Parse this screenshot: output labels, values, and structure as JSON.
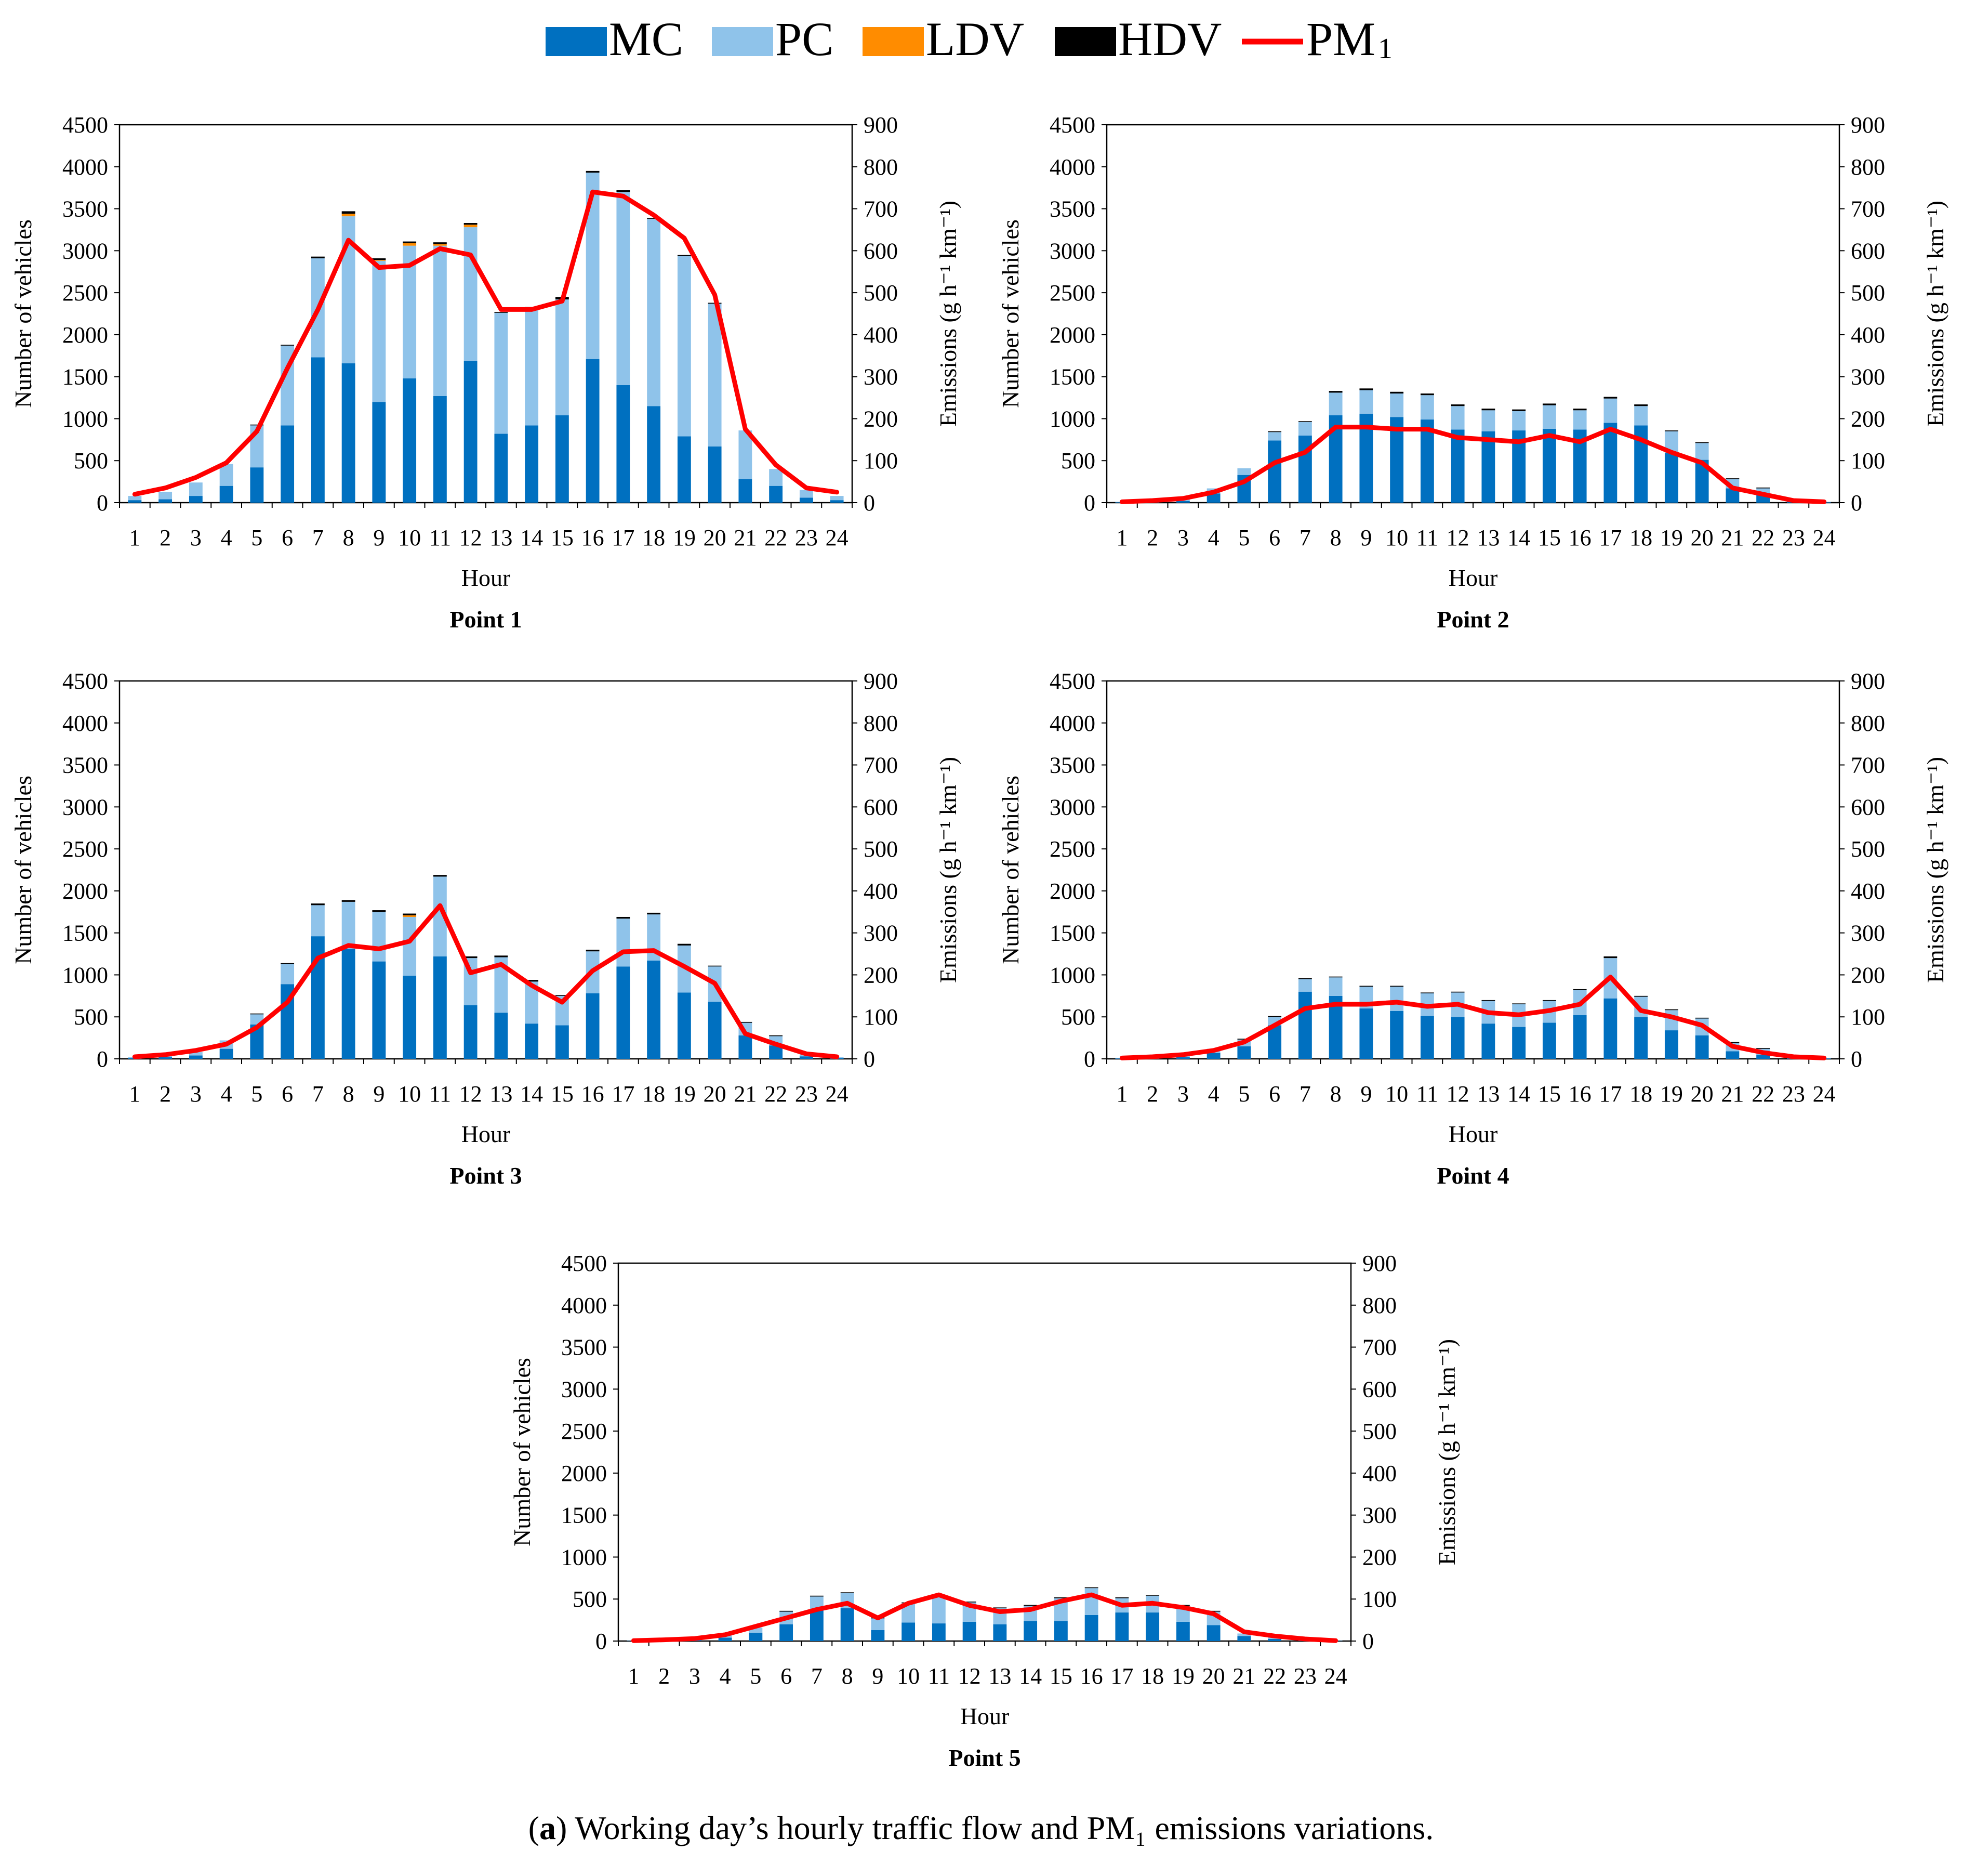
{
  "legend": {
    "items": [
      {
        "label": "MC",
        "color": "#0070c0",
        "kind": "box"
      },
      {
        "label": "PC",
        "color": "#8fc3ea",
        "kind": "box"
      },
      {
        "label": "LDV",
        "color": "#ff8c00",
        "kind": "box"
      },
      {
        "label": "HDV",
        "color": "#000000",
        "kind": "box"
      },
      {
        "label": "PM",
        "sub": "1",
        "color": "#ff0000",
        "kind": "line"
      }
    ]
  },
  "caption": {
    "letter": "a",
    "text": " Working day’s hourly traffic flow and PM₁ emissions variations."
  },
  "chart_data": [
    {
      "type": "bar",
      "title": "Point 1",
      "xlabel": "Hour",
      "ylabel": "Number of vehicles",
      "y2label": "Emissions (g h⁻¹ km⁻¹)",
      "ylim": [
        0,
        4500
      ],
      "y2lim": [
        0,
        900
      ],
      "categories": [
        "1",
        "2",
        "3",
        "4",
        "5",
        "6",
        "7",
        "8",
        "9",
        "10",
        "11",
        "12",
        "13",
        "14",
        "15",
        "16",
        "17",
        "18",
        "19",
        "20",
        "21",
        "22",
        "23",
        "24"
      ],
      "series": [
        {
          "name": "MC",
          "values": [
            30,
            40,
            80,
            200,
            420,
            920,
            1730,
            1660,
            1200,
            1480,
            1270,
            1690,
            820,
            920,
            1040,
            1710,
            1400,
            1150,
            790,
            670,
            280,
            200,
            60,
            30
          ]
        },
        {
          "name": "PC",
          "values": [
            50,
            90,
            160,
            260,
            500,
            950,
            1180,
            1750,
            1680,
            1580,
            1790,
            1590,
            1440,
            1390,
            1380,
            2220,
            2300,
            2230,
            2150,
            1700,
            580,
            200,
            90,
            50
          ]
        },
        {
          "name": "LDV",
          "values": [
            0,
            0,
            0,
            0,
            0,
            0,
            0,
            30,
            10,
            30,
            20,
            30,
            0,
            0,
            0,
            0,
            0,
            0,
            0,
            0,
            0,
            0,
            0,
            0
          ]
        },
        {
          "name": "HDV",
          "values": [
            0,
            0,
            0,
            0,
            10,
            10,
            20,
            30,
            20,
            20,
            20,
            20,
            10,
            20,
            30,
            20,
            20,
            10,
            10,
            10,
            0,
            0,
            0,
            0
          ]
        },
        {
          "name": "PM1",
          "axis": "right",
          "values": [
            20,
            35,
            60,
            95,
            170,
            320,
            460,
            625,
            560,
            565,
            605,
            590,
            460,
            460,
            480,
            740,
            730,
            685,
            630,
            495,
            175,
            90,
            35,
            25
          ]
        }
      ]
    },
    {
      "type": "bar",
      "title": "Point 2",
      "xlabel": "Hour",
      "ylabel": "Number of vehicles",
      "y2label": "Emissions (g h⁻¹ km⁻¹)",
      "ylim": [
        0,
        4500
      ],
      "y2lim": [
        0,
        900
      ],
      "categories": [
        "1",
        "2",
        "3",
        "4",
        "5",
        "6",
        "7",
        "8",
        "9",
        "10",
        "11",
        "12",
        "13",
        "14",
        "15",
        "16",
        "17",
        "18",
        "19",
        "20",
        "21",
        "22",
        "23",
        "24"
      ],
      "series": [
        {
          "name": "MC",
          "values": [
            5,
            10,
            20,
            110,
            330,
            740,
            800,
            1040,
            1060,
            1020,
            990,
            870,
            850,
            860,
            880,
            870,
            950,
            920,
            590,
            510,
            170,
            90,
            15,
            5
          ]
        },
        {
          "name": "PC",
          "values": [
            5,
            10,
            20,
            60,
            80,
            100,
            160,
            270,
            280,
            280,
            290,
            280,
            250,
            230,
            280,
            230,
            290,
            230,
            260,
            200,
            110,
            80,
            15,
            5
          ]
        },
        {
          "name": "LDV",
          "values": [
            0,
            0,
            0,
            0,
            0,
            0,
            0,
            0,
            0,
            0,
            0,
            0,
            0,
            0,
            0,
            0,
            0,
            0,
            0,
            0,
            0,
            0,
            0,
            0
          ]
        },
        {
          "name": "HDV",
          "values": [
            0,
            0,
            0,
            0,
            0,
            10,
            10,
            20,
            20,
            20,
            20,
            20,
            20,
            20,
            20,
            20,
            20,
            20,
            10,
            10,
            10,
            10,
            0,
            0
          ]
        },
        {
          "name": "PM1",
          "axis": "right",
          "values": [
            2,
            5,
            10,
            25,
            50,
            95,
            120,
            180,
            180,
            175,
            175,
            155,
            150,
            145,
            160,
            145,
            175,
            150,
            120,
            95,
            35,
            20,
            5,
            2
          ]
        }
      ]
    },
    {
      "type": "bar",
      "title": "Point 3",
      "xlabel": "Hour",
      "ylabel": "Number of vehicles",
      "y2label": "Emissions (g h⁻¹ km⁻¹)",
      "ylim": [
        0,
        4500
      ],
      "y2lim": [
        0,
        900
      ],
      "categories": [
        "1",
        "2",
        "3",
        "4",
        "5",
        "6",
        "7",
        "8",
        "9",
        "10",
        "11",
        "12",
        "13",
        "14",
        "15",
        "16",
        "17",
        "18",
        "19",
        "20",
        "21",
        "22",
        "23",
        "24"
      ],
      "series": [
        {
          "name": "MC",
          "values": [
            10,
            20,
            40,
            120,
            410,
            890,
            1460,
            1310,
            1160,
            990,
            1220,
            640,
            550,
            420,
            400,
            780,
            1100,
            1170,
            790,
            680,
            280,
            160,
            30,
            10
          ]
        },
        {
          "name": "PC",
          "values": [
            10,
            20,
            40,
            100,
            120,
            240,
            370,
            560,
            590,
            700,
            950,
            560,
            660,
            500,
            350,
            500,
            570,
            550,
            560,
            420,
            150,
            110,
            30,
            10
          ]
        },
        {
          "name": "LDV",
          "values": [
            0,
            0,
            0,
            0,
            0,
            0,
            0,
            0,
            0,
            20,
            0,
            0,
            0,
            0,
            0,
            0,
            0,
            0,
            0,
            0,
            0,
            0,
            0,
            0
          ]
        },
        {
          "name": "HDV",
          "values": [
            0,
            0,
            0,
            0,
            10,
            10,
            20,
            20,
            20,
            20,
            20,
            20,
            20,
            20,
            10,
            20,
            20,
            20,
            20,
            10,
            10,
            10,
            0,
            0
          ]
        },
        {
          "name": "PM1",
          "axis": "right",
          "values": [
            5,
            10,
            20,
            35,
            75,
            135,
            240,
            270,
            262,
            280,
            365,
            205,
            225,
            175,
            135,
            210,
            255,
            258,
            220,
            180,
            60,
            35,
            12,
            5
          ]
        }
      ]
    },
    {
      "type": "bar",
      "title": "Point 4",
      "xlabel": "Hour",
      "ylabel": "Number of vehicles",
      "y2label": "Emissions (g h⁻¹ km⁻¹)",
      "ylim": [
        0,
        4500
      ],
      "y2lim": [
        0,
        900
      ],
      "categories": [
        "1",
        "2",
        "3",
        "4",
        "5",
        "6",
        "7",
        "8",
        "9",
        "10",
        "11",
        "12",
        "13",
        "14",
        "15",
        "16",
        "17",
        "18",
        "19",
        "20",
        "21",
        "22",
        "23",
        "24"
      ],
      "series": [
        {
          "name": "MC",
          "values": [
            5,
            10,
            20,
            70,
            150,
            400,
            800,
            750,
            600,
            570,
            510,
            500,
            420,
            380,
            430,
            520,
            720,
            500,
            340,
            280,
            90,
            50,
            10,
            5
          ]
        },
        {
          "name": "PC",
          "values": [
            5,
            10,
            20,
            50,
            80,
            100,
            150,
            220,
            260,
            290,
            270,
            290,
            270,
            270,
            260,
            300,
            480,
            240,
            240,
            200,
            100,
            70,
            10,
            5
          ]
        },
        {
          "name": "LDV",
          "values": [
            0,
            0,
            0,
            0,
            0,
            0,
            0,
            0,
            0,
            0,
            0,
            0,
            0,
            0,
            0,
            0,
            0,
            0,
            0,
            0,
            0,
            0,
            0,
            0
          ]
        },
        {
          "name": "HDV",
          "values": [
            0,
            0,
            0,
            0,
            10,
            10,
            10,
            10,
            10,
            10,
            10,
            10,
            10,
            10,
            10,
            10,
            20,
            10,
            10,
            10,
            10,
            10,
            0,
            0
          ]
        },
        {
          "name": "PM1",
          "axis": "right",
          "values": [
            2,
            5,
            10,
            20,
            40,
            80,
            120,
            130,
            130,
            135,
            125,
            130,
            110,
            105,
            115,
            130,
            195,
            115,
            100,
            80,
            30,
            15,
            5,
            2
          ]
        }
      ]
    },
    {
      "type": "bar",
      "title": "Point 5",
      "xlabel": "Hour",
      "ylabel": "Number of vehicles",
      "y2label": "Emissions (g h⁻¹ km⁻¹)",
      "ylim": [
        0,
        4500
      ],
      "y2lim": [
        0,
        900
      ],
      "categories": [
        "1",
        "2",
        "3",
        "4",
        "5",
        "6",
        "7",
        "8",
        "9",
        "10",
        "11",
        "12",
        "13",
        "14",
        "15",
        "16",
        "17",
        "18",
        "19",
        "20",
        "21",
        "22",
        "23",
        "24"
      ],
      "series": [
        {
          "name": "MC",
          "values": [
            2,
            5,
            15,
            40,
            100,
            200,
            380,
            390,
            130,
            220,
            210,
            230,
            200,
            240,
            240,
            310,
            340,
            340,
            230,
            190,
            60,
            25,
            8,
            2
          ]
        },
        {
          "name": "PC",
          "values": [
            3,
            5,
            15,
            30,
            60,
            150,
            150,
            180,
            140,
            230,
            330,
            230,
            190,
            180,
            270,
            320,
            170,
            200,
            190,
            160,
            30,
            25,
            7,
            3
          ]
        },
        {
          "name": "LDV",
          "values": [
            0,
            0,
            0,
            0,
            0,
            0,
            0,
            0,
            0,
            0,
            0,
            0,
            0,
            0,
            0,
            0,
            0,
            0,
            0,
            0,
            0,
            0,
            0,
            0
          ]
        },
        {
          "name": "HDV",
          "values": [
            0,
            0,
            0,
            0,
            0,
            10,
            10,
            10,
            10,
            10,
            10,
            10,
            10,
            10,
            10,
            10,
            10,
            10,
            10,
            10,
            0,
            0,
            0,
            0
          ]
        },
        {
          "name": "PM1",
          "axis": "right",
          "values": [
            1,
            3,
            6,
            15,
            35,
            55,
            75,
            90,
            55,
            90,
            110,
            85,
            70,
            75,
            95,
            110,
            85,
            90,
            80,
            65,
            22,
            12,
            5,
            1
          ]
        }
      ]
    }
  ]
}
